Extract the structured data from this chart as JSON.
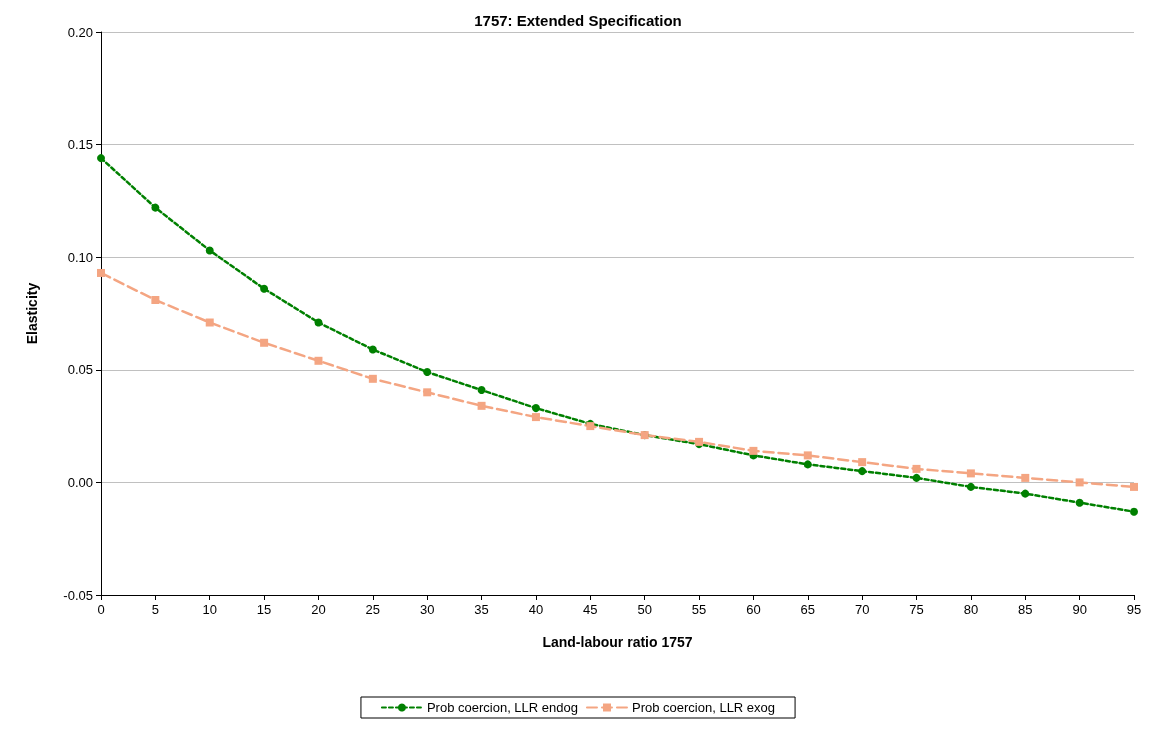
{
  "chart_data": {
    "type": "line",
    "title": "1757: Extended Specification",
    "xlabel": "Land-labour ratio 1757",
    "ylabel": "Elasticity",
    "categories": [
      "0",
      "5",
      "10",
      "15",
      "20",
      "25",
      "30",
      "35",
      "40",
      "45",
      "50",
      "55",
      "60",
      "65",
      "70",
      "75",
      "80",
      "85",
      "90",
      "95"
    ],
    "series": [
      {
        "name": "Prob coercion, LLR endog",
        "color": "#008000",
        "marker": "circle",
        "line_style": "dotted",
        "values": [
          0.144,
          0.122,
          0.103,
          0.086,
          0.071,
          0.059,
          0.049,
          0.041,
          0.033,
          0.026,
          0.021,
          0.017,
          0.012,
          0.008,
          0.005,
          0.002,
          -0.002,
          -0.005,
          -0.009,
          -0.013
        ]
      },
      {
        "name": "Prob coercion, LLR exog",
        "color": "#f4a582",
        "marker": "square",
        "line_style": "dashed",
        "values": [
          0.093,
          0.081,
          0.071,
          0.062,
          0.054,
          0.046,
          0.04,
          0.034,
          0.029,
          0.025,
          0.021,
          0.018,
          0.014,
          0.012,
          0.009,
          0.006,
          0.004,
          0.002,
          0.0,
          -0.002
        ]
      }
    ],
    "ylim": [
      -0.05,
      0.2
    ],
    "yticks": [
      -0.05,
      {
        "value": 0,
        "label": "0.00"
      },
      0.05,
      {
        "value": 0.1,
        "label": "0.10"
      },
      0.15,
      {
        "value": 0.2,
        "label": "0.20"
      }
    ],
    "grid": "y",
    "legend": "bottom"
  }
}
